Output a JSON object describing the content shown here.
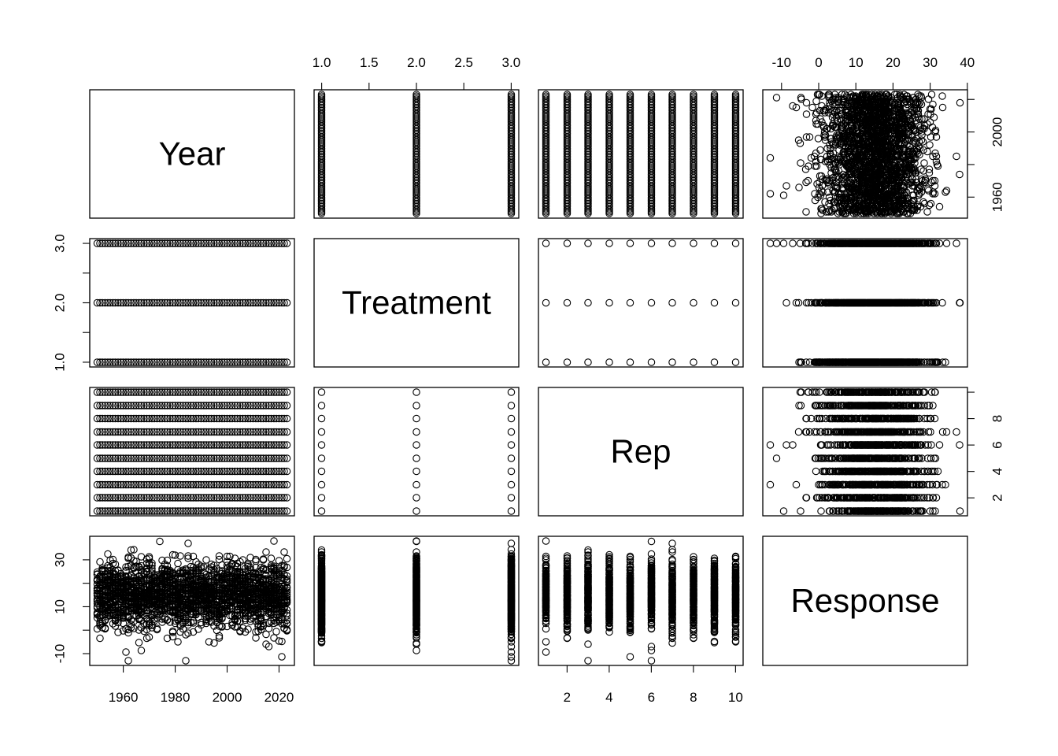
{
  "chart_data": {
    "type": "scatter",
    "variables": [
      "Year",
      "Treatment",
      "Rep",
      "Response"
    ],
    "ranges": {
      "Year": [
        1950,
        2023
      ],
      "Treatment": [
        1,
        3
      ],
      "Rep": [
        1,
        10
      ],
      "Response": [
        -13,
        38
      ]
    },
    "axis_ticks": {
      "Year": {
        "values": [
          1960,
          1980,
          2000,
          2020
        ],
        "labels": [
          "1960",
          "1980",
          "2000",
          "2020"
        ]
      },
      "Treatment": {
        "values": [
          1.0,
          1.5,
          2.0,
          2.5,
          3.0
        ],
        "labels": [
          "1.0",
          "1.5",
          "2.0",
          "2.5",
          "3.0"
        ]
      },
      "Rep": {
        "values": [
          2,
          4,
          6,
          8,
          10
        ],
        "labels": [
          "2",
          "4",
          "6",
          "8",
          "10"
        ]
      },
      "Response": {
        "values": [
          -10,
          0,
          10,
          20,
          30,
          40
        ],
        "labels": [
          "-10",
          "0",
          "10",
          "20",
          "30",
          "40"
        ]
      }
    },
    "left_axis": {
      "Treatment": {
        "values": [
          1.0,
          1.5,
          2.0,
          2.5,
          3.0
        ],
        "labels": [
          "1.0",
          "",
          "2.0",
          "",
          "3.0"
        ]
      },
      "Response": {
        "values": [
          -10,
          0,
          10,
          20,
          30
        ],
        "labels": [
          "-10",
          "",
          "10",
          "",
          "30"
        ]
      }
    },
    "right_axis": {
      "Year": {
        "values": [
          1960,
          1980,
          2000,
          2020
        ],
        "labels": [
          "1960",
          "",
          "2000",
          ""
        ]
      },
      "Rep": {
        "values": [
          2,
          4,
          6,
          8,
          10
        ],
        "labels": [
          "2",
          "4",
          "6",
          "8",
          ""
        ]
      }
    },
    "top_axis": {
      "Treatment": {
        "values": [
          1.0,
          1.5,
          2.0,
          2.5,
          3.0
        ],
        "labels": [
          "1.0",
          "1.5",
          "2.0",
          "2.5",
          "3.0"
        ]
      },
      "Response": {
        "values": [
          -10,
          0,
          10,
          20,
          30,
          40
        ],
        "labels": [
          "-10",
          "0",
          "10",
          "20",
          "30",
          "40"
        ]
      }
    },
    "bottom_axis": {
      "Year": {
        "values": [
          1960,
          1980,
          2000,
          2020
        ],
        "labels": [
          "1960",
          "1980",
          "2000",
          "2020"
        ]
      },
      "Rep": {
        "values": [
          2,
          4,
          6,
          8,
          10
        ],
        "labels": [
          "2",
          "4",
          "6",
          "8",
          "10"
        ]
      }
    },
    "data_description": {
      "Year_values": "integer years 1950-2023",
      "Treatment_values": [
        1,
        2,
        3
      ],
      "Rep_values": [
        1,
        2,
        3,
        4,
        5,
        6,
        7,
        8,
        9,
        10
      ],
      "Response_distribution": {
        "center": 15,
        "spread": 7,
        "min": -13,
        "max": 38
      }
    },
    "grid": false,
    "legend": "none",
    "point_shape": "open circle",
    "point_color": "#000000"
  }
}
